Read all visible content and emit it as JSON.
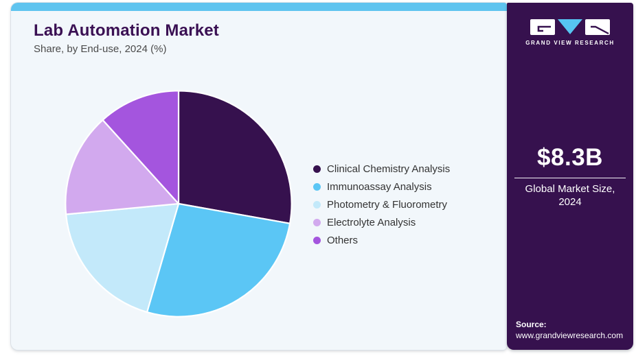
{
  "header": {
    "title": "Lab Automation Market",
    "subtitle": "Share, by End-use, 2024 (%)"
  },
  "chart_data": {
    "type": "pie",
    "title": "Lab Automation Market Share, by End-use, 2024 (%)",
    "unit": "percent",
    "start_angle_deg": 0,
    "direction": "clockwise",
    "legend_position": "right",
    "data_labels": false,
    "categories": [
      "Clinical Chemistry Analysis",
      "Immunoassay Analysis",
      "Photometry & Fluorometry",
      "Electrolyte Analysis",
      "Others"
    ],
    "values": [
      27.8,
      26.7,
      19.0,
      14.8,
      11.7
    ],
    "colors": [
      "#36114E",
      "#5BC6F5",
      "#C3E9FA",
      "#D2A9EE",
      "#A455DE"
    ]
  },
  "sidebar": {
    "brand_name": "GRAND VIEW RESEARCH",
    "market_size": {
      "value": "$8.3B",
      "label_line1": "Global Market Size,",
      "label_line2": "2024"
    },
    "source": {
      "label": "Source:",
      "url": "www.grandviewresearch.com"
    }
  },
  "theme": {
    "topbar_color": "#5FC4EF",
    "card_bg": "#F2F7FB",
    "sidebar_bg": "#36114E",
    "title_color": "#3A1053",
    "subtitle_color": "#4A4A4A",
    "legend_text_color": "#333333",
    "logo_accent": "#56C5F2",
    "slice_separator": "#FFFFFF"
  }
}
